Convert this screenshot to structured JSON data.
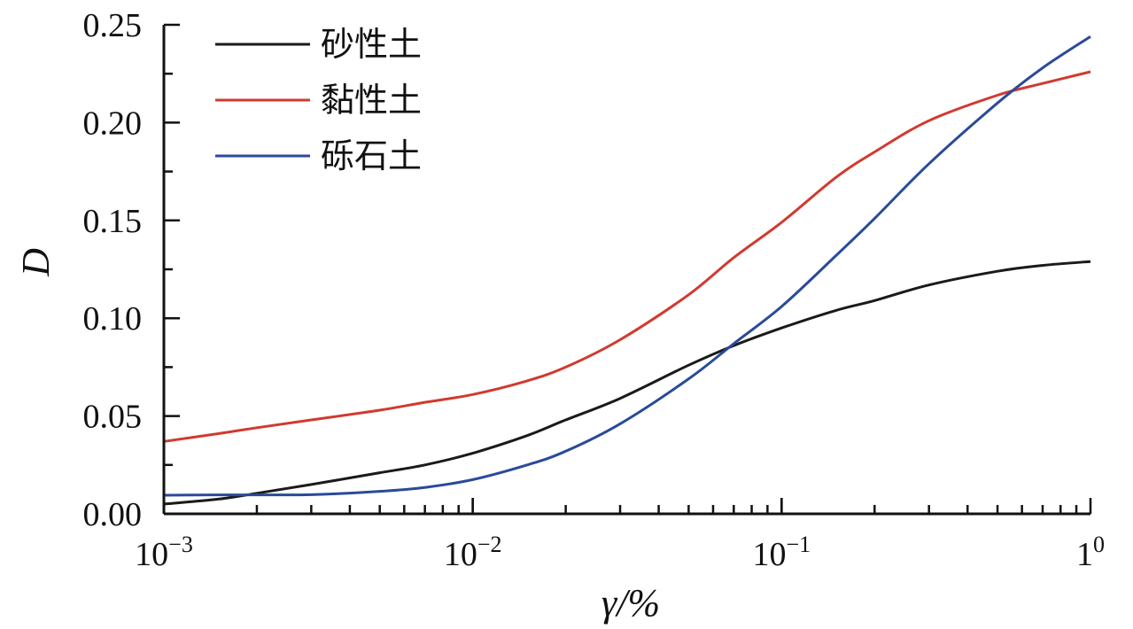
{
  "chart_data": {
    "type": "line",
    "title": "",
    "xlabel": "γ/%",
    "ylabel": "D",
    "x_scale": "log",
    "xlim": [
      0.001,
      1
    ],
    "ylim": [
      0,
      0.25
    ],
    "x_ticks": [
      {
        "value": 0.001,
        "base": "10",
        "exp": "−3"
      },
      {
        "value": 0.01,
        "base": "10",
        "exp": "−2"
      },
      {
        "value": 0.1,
        "base": "10",
        "exp": "−1"
      },
      {
        "value": 1,
        "base": "1",
        "exp": "0"
      }
    ],
    "y_ticks": [
      {
        "value": 0,
        "label": "0.00"
      },
      {
        "value": 0.05,
        "label": "0.05"
      },
      {
        "value": 0.1,
        "label": "0.10"
      },
      {
        "value": 0.15,
        "label": "0.15"
      },
      {
        "value": 0.2,
        "label": "0.20"
      },
      {
        "value": 0.25,
        "label": "0.25"
      }
    ],
    "grid": false,
    "legend_position": "top-left",
    "series": [
      {
        "name": "砂性土",
        "color": "#1a1a1a",
        "x": [
          0.001,
          0.0015,
          0.002,
          0.003,
          0.005,
          0.007,
          0.01,
          0.015,
          0.02,
          0.03,
          0.05,
          0.07,
          0.1,
          0.15,
          0.2,
          0.3,
          0.5,
          0.7,
          1
        ],
        "y": [
          0.005,
          0.0075,
          0.0105,
          0.015,
          0.021,
          0.025,
          0.031,
          0.04,
          0.048,
          0.059,
          0.076,
          0.086,
          0.095,
          0.104,
          0.109,
          0.117,
          0.124,
          0.127,
          0.129
        ]
      },
      {
        "name": "黏性土",
        "color": "#d13a2f",
        "x": [
          0.001,
          0.0015,
          0.002,
          0.003,
          0.005,
          0.007,
          0.01,
          0.015,
          0.02,
          0.03,
          0.05,
          0.07,
          0.1,
          0.15,
          0.2,
          0.3,
          0.5,
          0.7,
          1
        ],
        "y": [
          0.037,
          0.041,
          0.044,
          0.048,
          0.053,
          0.057,
          0.061,
          0.068,
          0.075,
          0.089,
          0.112,
          0.131,
          0.149,
          0.172,
          0.185,
          0.201,
          0.214,
          0.22,
          0.226
        ]
      },
      {
        "name": "砾石土",
        "color": "#2a4a9a",
        "x": [
          0.001,
          0.0015,
          0.002,
          0.003,
          0.005,
          0.007,
          0.01,
          0.015,
          0.02,
          0.03,
          0.05,
          0.07,
          0.1,
          0.15,
          0.2,
          0.3,
          0.5,
          0.7,
          1
        ],
        "y": [
          0.0095,
          0.0097,
          0.0097,
          0.0098,
          0.0115,
          0.0135,
          0.0175,
          0.025,
          0.032,
          0.046,
          0.069,
          0.087,
          0.106,
          0.132,
          0.151,
          0.179,
          0.21,
          0.228,
          0.244
        ]
      }
    ]
  }
}
